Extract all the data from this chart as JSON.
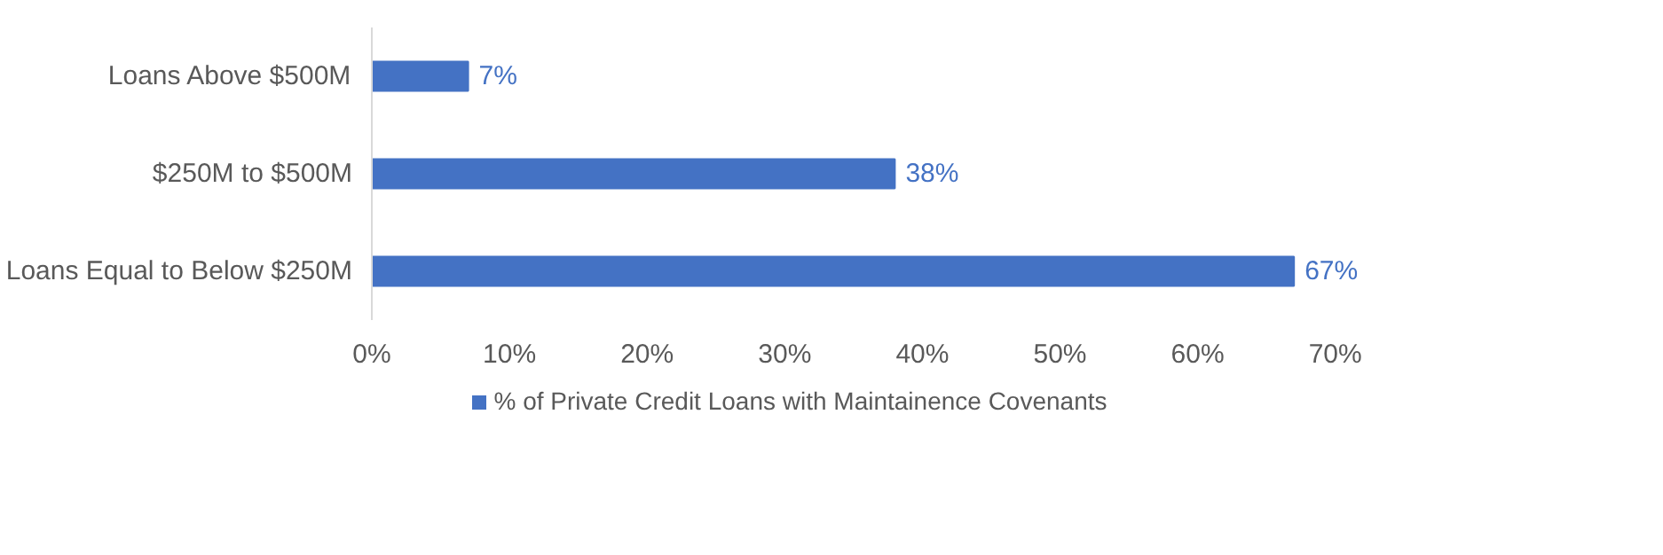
{
  "chart_data": {
    "type": "bar",
    "orientation": "horizontal",
    "categories": [
      "Loans Above $500M",
      "$250M to $500M",
      "Loans Equal to Below $250M"
    ],
    "series": [
      {
        "name": "% of Private Credit Loans with Maintainence Covenants",
        "color": "#4472c4",
        "values": [
          7,
          38,
          67
        ],
        "value_labels": [
          "7%",
          "38%",
          "67%"
        ]
      }
    ],
    "xlim": [
      0,
      70
    ],
    "xticks": [
      {
        "value": 0,
        "label": "0%"
      },
      {
        "value": 10,
        "label": "10%"
      },
      {
        "value": 20,
        "label": "20%"
      },
      {
        "value": 30,
        "label": "30%"
      },
      {
        "value": 40,
        "label": "40%"
      },
      {
        "value": 50,
        "label": "50%"
      },
      {
        "value": 60,
        "label": "60%"
      },
      {
        "value": 70,
        "label": "70%"
      }
    ],
    "grid": false,
    "legend": "bottom"
  }
}
